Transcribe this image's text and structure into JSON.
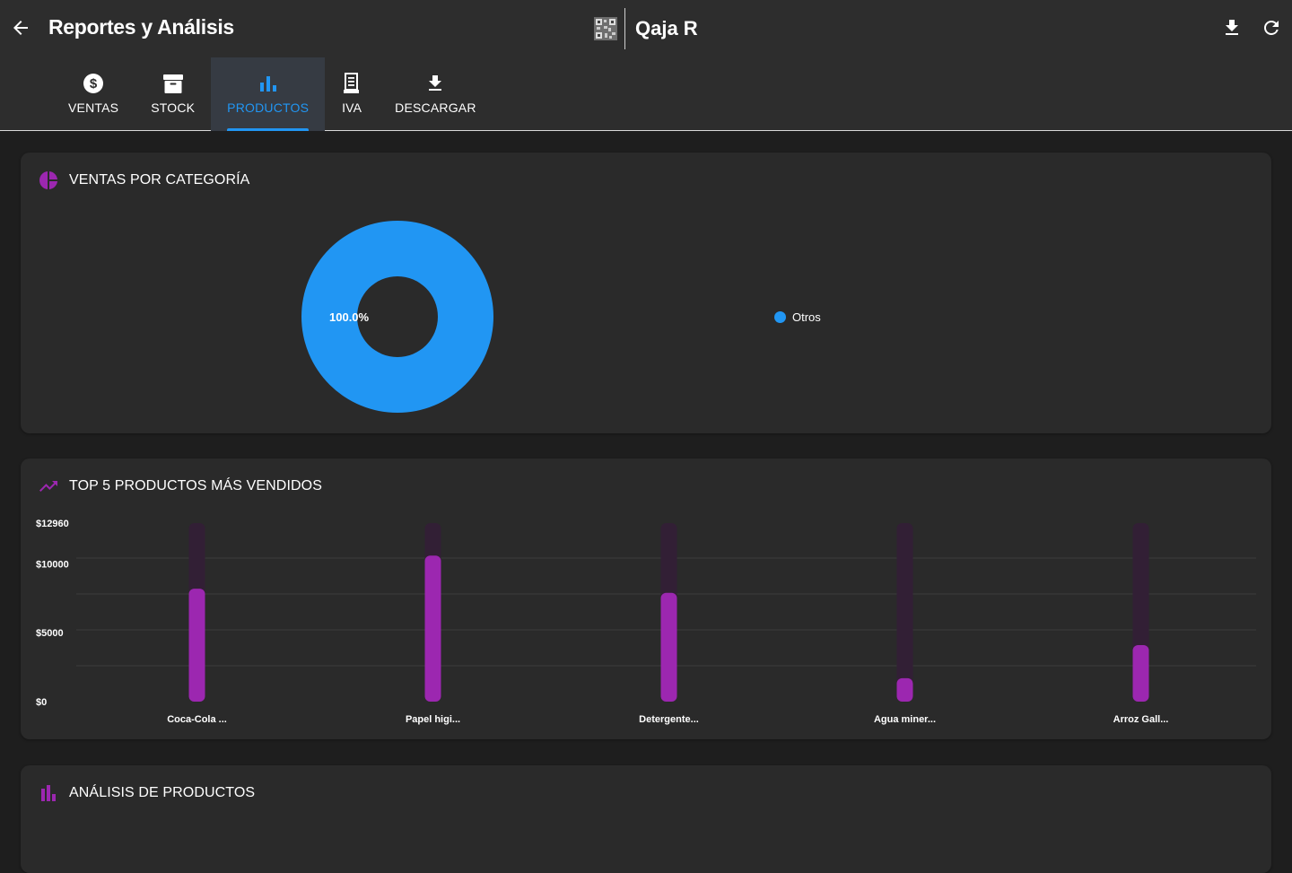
{
  "header": {
    "title": "Reportes y Análisis",
    "brand_name": "Qaja R",
    "icons": {
      "back": "arrow-left-icon",
      "download": "download-icon",
      "refresh": "refresh-icon",
      "logo": "qr-code-logo"
    }
  },
  "tabs": [
    {
      "label": "VENTAS",
      "icon": "dollar-circle-icon",
      "active": false
    },
    {
      "label": "STOCK",
      "icon": "archive-box-icon",
      "active": false
    },
    {
      "label": "PRODUCTOS",
      "icon": "bar-chart-icon",
      "active": true
    },
    {
      "label": "IVA",
      "icon": "receipt-icon",
      "active": false
    },
    {
      "label": "DESCARGAR",
      "icon": "download-icon",
      "active": false
    }
  ],
  "colors": {
    "accent_blue": "#2196f3",
    "accent_purple": "#9c27b0",
    "card_bg": "#2a2a2a",
    "topbar_bg": "#2d2d2d"
  },
  "cards": {
    "sales_by_category": {
      "title": "VENTAS POR CATEGORÍA",
      "icon": "pie-chart-icon"
    },
    "top_products": {
      "title": "TOP 5 PRODUCTOS MÁS VENDIDOS",
      "icon": "trending-up-icon"
    },
    "product_analysis": {
      "title": "ANÁLISIS DE PRODUCTOS",
      "icon": "bar-chart-icon"
    }
  },
  "chart_data": [
    {
      "type": "pie",
      "variant": "donut",
      "slices": [
        {
          "label": "Otros",
          "value": 100.0,
          "percent_label": "100.0%",
          "color": "#2196f3"
        }
      ],
      "legend": "right"
    },
    {
      "type": "bar",
      "categories": [
        "Coca-Cola ...",
        "Papel higi...",
        "Detergente...",
        "Agua miner...",
        "Arroz Gall..."
      ],
      "values": [
        8200,
        10600,
        7900,
        1700,
        4100
      ],
      "ylim": [
        0,
        12960
      ],
      "yticks": [
        0,
        5000,
        10000,
        12960
      ],
      "ytick_labels": [
        "$0",
        "$5000",
        "$10000",
        "$12960"
      ],
      "grid": true,
      "bar_color": "#9c27b0"
    }
  ]
}
